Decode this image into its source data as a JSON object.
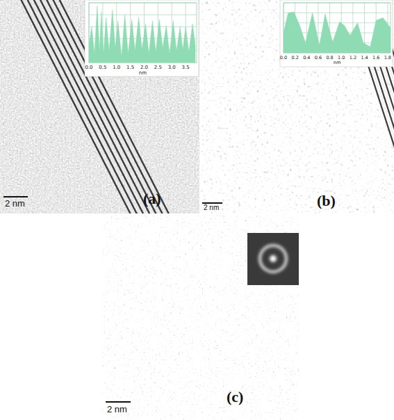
{
  "figure": {
    "panels": [
      {
        "label": "(a)",
        "scale_bar": "2 nm"
      },
      {
        "label": "(b)",
        "scale_bar": "2 nm"
      },
      {
        "label": "(c)",
        "scale_bar": "2 nm"
      }
    ]
  },
  "chart_data": [
    {
      "type": "area",
      "x_label": "nm",
      "color": "#8fdcb4",
      "grid": true,
      "tick_labels": "x",
      "xlim": [
        0,
        3.9
      ],
      "ylim": [
        0,
        100
      ],
      "xticks": [
        {
          "value": 0,
          "label": "0.0"
        },
        0.5,
        {
          "value": 1,
          "label": "1.0"
        },
        1.5,
        {
          "value": 2,
          "label": "2.0"
        },
        2.5,
        {
          "value": 3,
          "label": "3.0"
        },
        3.5
      ],
      "yticks": [
        0,
        20,
        40,
        60,
        80,
        100
      ],
      "x": [
        0.0,
        0.1,
        0.2,
        0.3,
        0.38,
        0.45,
        0.53,
        0.62,
        0.73,
        0.85,
        0.95,
        1.05,
        1.18,
        1.3,
        1.42,
        1.55,
        1.67,
        1.8,
        1.92,
        2.05,
        2.17,
        2.3,
        2.42,
        2.55,
        2.67,
        2.8,
        2.92,
        3.05,
        3.17,
        3.3,
        3.4,
        3.5,
        3.62,
        3.75,
        3.85
      ],
      "values": [
        30,
        60,
        15,
        95,
        20,
        85,
        15,
        75,
        20,
        88,
        25,
        70,
        10,
        80,
        15,
        72,
        20,
        76,
        22,
        65,
        15,
        70,
        18,
        72,
        25,
        62,
        15,
        70,
        20,
        60,
        22,
        60,
        18,
        65,
        30
      ]
    },
    {
      "type": "area",
      "x_label": "nm",
      "color": "#8fdcb4",
      "grid": true,
      "tick_labels": "x",
      "xlim": [
        0,
        1.85
      ],
      "ylim": [
        0,
        100
      ],
      "xticks": [
        {
          "value": 0,
          "label": "0.0"
        },
        0.2,
        0.4,
        0.6,
        0.8,
        {
          "value": 1,
          "label": "1.0"
        },
        1.2,
        1.4,
        1.6,
        1.8
      ],
      "yticks": [
        0,
        20,
        40,
        60,
        80,
        100
      ],
      "x": [
        0.0,
        0.08,
        0.18,
        0.28,
        0.38,
        0.5,
        0.62,
        0.72,
        0.85,
        0.97,
        1.05,
        1.15,
        1.28,
        1.38,
        1.5,
        1.6,
        1.72,
        1.85
      ],
      "values": [
        40,
        80,
        82,
        55,
        20,
        80,
        15,
        78,
        22,
        62,
        55,
        35,
        60,
        20,
        12,
        65,
        70,
        50
      ]
    }
  ]
}
